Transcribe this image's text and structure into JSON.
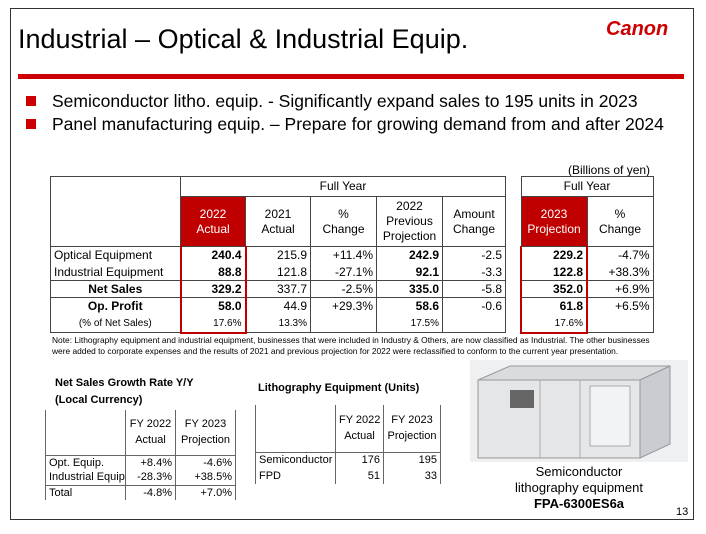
{
  "header": {
    "title": "Industrial – Optical & Industrial Equip.",
    "logo": "Canon"
  },
  "bullets": [
    "Semiconductor litho. equip. - Significantly expand sales to 195 units in 2023",
    "Panel manufacturing equip. – Prepare for growing demand from and after 2024"
  ],
  "main_table": {
    "unit": "(Billions of yen)",
    "groups": [
      "Full Year",
      "Full Year"
    ],
    "columns": [
      [
        "2022",
        "Actual"
      ],
      [
        "2021",
        "Actual"
      ],
      [
        "%",
        "Change"
      ],
      [
        "2022",
        "Previous",
        "Projection"
      ],
      [
        "Amount",
        "Change"
      ],
      [
        "2023",
        "Projection"
      ],
      [
        "%",
        "Change"
      ]
    ],
    "rows": [
      {
        "label": "Optical Equipment",
        "cells": [
          "240.4",
          "215.9",
          "+11.4%",
          "242.9",
          "-2.5",
          "229.2",
          "-4.7%"
        ]
      },
      {
        "label": "Industrial Equipment",
        "cells": [
          "88.8",
          "121.8",
          "-27.1%",
          "92.1",
          "-3.3",
          "122.8",
          "+38.3%"
        ]
      },
      {
        "label": "Net Sales",
        "cells": [
          "329.2",
          "337.7",
          "-2.5%",
          "335.0",
          "-5.8",
          "352.0",
          "+6.9%"
        ]
      },
      {
        "label": "Op. Profit",
        "cells": [
          "58.0",
          "44.9",
          "+29.3%",
          "58.6",
          "-0.6",
          "61.8",
          "+6.5%"
        ]
      },
      {
        "label": "(% of Net Sales)",
        "cells": [
          "17.6%",
          "13.3%",
          null,
          "17.5%",
          null,
          "17.6%",
          null
        ]
      }
    ]
  },
  "note": "Note: Lithography equipment and industrial equipment, businesses that were included in Industry & Others, are now classified as Industrial. The other businesses were added to corporate expenses and the results of 2021 and previous projection for 2022 were reclassified to conform to the current year presentation.",
  "growth_table": {
    "title": [
      "Net Sales Growth Rate Y/Y",
      "(Local Currency)"
    ],
    "columns": [
      [
        "FY 2022",
        "Actual"
      ],
      [
        "FY 2023",
        "Projection"
      ]
    ],
    "rows": [
      {
        "label": "Opt. Equip.",
        "cells": [
          "+8.4%",
          "-4.6%"
        ]
      },
      {
        "label": "Industrial Equip.",
        "cells": [
          "-28.3%",
          "+38.5%"
        ]
      },
      {
        "label": "Total",
        "cells": [
          "-4.8%",
          "+7.0%"
        ]
      }
    ]
  },
  "litho_table": {
    "title": "Lithography Equipment (Units)",
    "columns": [
      [
        "FY 2022",
        "Actual"
      ],
      [
        "FY 2023",
        "Projection"
      ]
    ],
    "rows": [
      {
        "label": "Semiconductor",
        "cells": [
          "176",
          "195"
        ]
      },
      {
        "label": "FPD",
        "cells": [
          "51",
          "33"
        ]
      }
    ]
  },
  "product": {
    "caption": [
      "Semiconductor",
      "lithography equipment"
    ],
    "model": "FPA-6300ES6a"
  },
  "page_number": "13"
}
